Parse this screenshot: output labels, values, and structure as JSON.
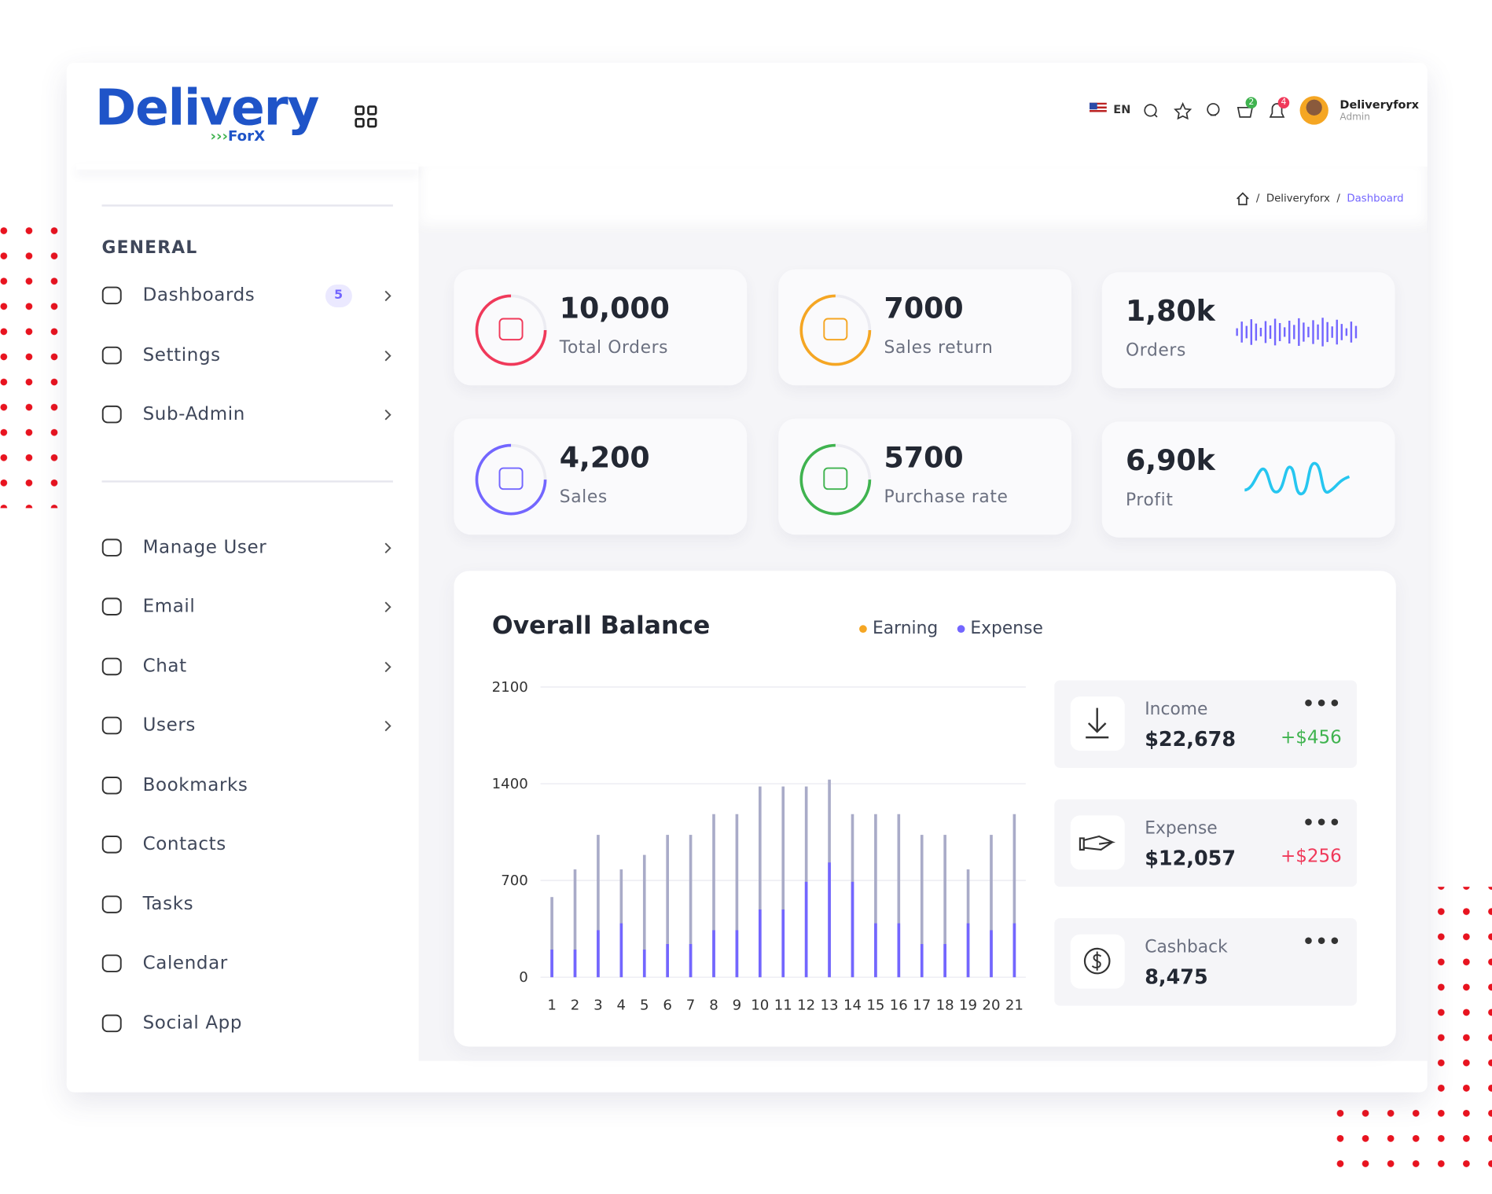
{
  "logo": {
    "text": "Delivery",
    "sub": "ForX"
  },
  "header": {
    "language": "EN",
    "cart_badge": 2,
    "bell_badge": 4,
    "user": {
      "name": "Deliveryforx",
      "role": "Admin"
    }
  },
  "breadcrumb": [
    "Deliveryforx",
    "Dashboard"
  ],
  "sidebar": {
    "sections": [
      {
        "title": "GENERAL",
        "items": [
          {
            "label": "Dashboards",
            "badge": 5,
            "arrow": true
          },
          {
            "label": "Settings",
            "arrow": true
          },
          {
            "label": "Sub-Admin",
            "arrow": true
          }
        ]
      },
      {
        "items": [
          {
            "label": "Manage User",
            "arrow": true
          },
          {
            "label": "Email",
            "arrow": true
          },
          {
            "label": "Chat",
            "arrow": true
          },
          {
            "label": "Users",
            "arrow": true
          },
          {
            "label": "Bookmarks",
            "arrow": false
          },
          {
            "label": "Contacts",
            "arrow": false
          },
          {
            "label": "Tasks",
            "arrow": false
          },
          {
            "label": "Calendar",
            "arrow": false
          },
          {
            "label": "Social App",
            "arrow": false
          }
        ]
      }
    ]
  },
  "stats": [
    {
      "value": "10,000",
      "label": "Total Orders",
      "color": "#f0395a"
    },
    {
      "value": "7000",
      "label": "Sales return",
      "color": "#f5a623"
    },
    {
      "value": "1,80k",
      "label": "Orders",
      "color": "#7366ff"
    },
    {
      "value": "4,200",
      "label": "Sales",
      "color": "#7366ff"
    },
    {
      "value": "5700",
      "label": "Purchase rate",
      "color": "#3fb34f"
    },
    {
      "value": "6,90k",
      "label": "Profit",
      "color": "#26c6f0"
    }
  ],
  "balance": {
    "title": "Overall Balance",
    "chart": {
      "type": "bar",
      "categories": [
        1,
        2,
        3,
        4,
        5,
        6,
        7,
        8,
        9,
        10,
        11,
        12,
        13,
        14,
        15,
        16,
        17,
        18,
        19,
        20,
        21
      ],
      "series": [
        {
          "name": "Earning",
          "color": "#a9abc8",
          "legend_color": "#f5a623",
          "values": [
            580,
            780,
            1030,
            780,
            885,
            1030,
            1030,
            1180,
            1180,
            1380,
            1380,
            1380,
            1430,
            1180,
            1180,
            1180,
            1030,
            1030,
            780,
            1030,
            1180
          ]
        },
        {
          "name": "Expense",
          "color": "#7366ff",
          "legend_color": "#7366ff",
          "values": [
            200,
            200,
            340,
            390,
            200,
            240,
            240,
            340,
            340,
            490,
            490,
            690,
            830,
            690,
            390,
            390,
            240,
            240,
            390,
            340,
            390
          ]
        }
      ],
      "ylim": [
        0,
        2100
      ],
      "yticks": [
        0,
        700,
        1400,
        2100
      ],
      "grid": true
    },
    "cards": [
      {
        "label": "Income",
        "amount": "$22,678",
        "change": "+$456",
        "change_color": "#3fb34f"
      },
      {
        "label": "Expense",
        "amount": "$12,057",
        "change": "+$256",
        "change_color": "#f0395a"
      },
      {
        "label": "Cashback",
        "amount": "8,475"
      }
    ]
  }
}
